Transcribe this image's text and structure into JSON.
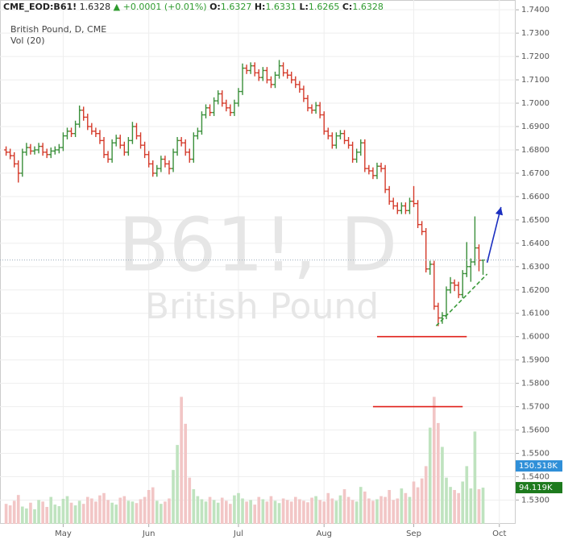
{
  "chart_data": {
    "type": "ohlc",
    "header": {
      "symbol": "CME_EOD:B61!",
      "last": 1.6328,
      "change": "+0.0001",
      "change_pct": "(+0.01%)",
      "o_label": "O:",
      "open": 1.6327,
      "h_label": "H:",
      "high": 1.6331,
      "l_label": "L:",
      "low": 1.6265,
      "c_label": "C:",
      "close": 1.6328
    },
    "legend_title": "British Pound, D, CME",
    "volume_title": "Vol (20)",
    "watermark": "B61!, D",
    "watermark_sub": "British Pound",
    "up_color": "#3a8f3a",
    "down_color": "#d43a2a",
    "up_volume_color": "#bfe3bf",
    "down_volume_color": "#f2c6c6",
    "xlim": [
      -1.5,
      125
    ],
    "xticks": [
      {
        "value": 14,
        "label": "May"
      },
      {
        "value": 35,
        "label": "Jun"
      },
      {
        "value": 57,
        "label": "Jul"
      },
      {
        "value": 78,
        "label": "Aug"
      },
      {
        "value": 100,
        "label": "Sep"
      },
      {
        "value": 121,
        "label": "Oct"
      }
    ],
    "ylim": [
      1.5198,
      1.7442
    ],
    "yticks": [
      {
        "value": 1.74,
        "label": "1.7400"
      },
      {
        "value": 1.73,
        "label": "1.7300"
      },
      {
        "value": 1.72,
        "label": "1.7200"
      },
      {
        "value": 1.71,
        "label": "1.7100"
      },
      {
        "value": 1.7,
        "label": "1.7000"
      },
      {
        "value": 1.69,
        "label": "1.6900"
      },
      {
        "value": 1.68,
        "label": "1.6800"
      },
      {
        "value": 1.67,
        "label": "1.6700"
      },
      {
        "value": 1.66,
        "label": "1.6600"
      },
      {
        "value": 1.65,
        "label": "1.6500"
      },
      {
        "value": 1.64,
        "label": "1.6400"
      },
      {
        "value": 1.63,
        "label": "1.6300"
      },
      {
        "value": 1.62,
        "label": "1.6200"
      },
      {
        "value": 1.61,
        "label": "1.6100"
      },
      {
        "value": 1.6,
        "label": "1.6000"
      },
      {
        "value": 1.59,
        "label": "1.5900"
      },
      {
        "value": 1.58,
        "label": "1.5800"
      },
      {
        "value": 1.57,
        "label": "1.5700"
      },
      {
        "value": 1.56,
        "label": "1.5600"
      },
      {
        "value": 1.55,
        "label": "1.5500"
      },
      {
        "value": 1.54,
        "label": "1.5400"
      },
      {
        "value": 1.53,
        "label": "1.5300"
      }
    ],
    "grid": true,
    "volume_ylim": [
      0,
      400
    ],
    "volume_ma": {
      "value": 150.518,
      "label": "150.518K"
    },
    "volume_last": {
      "value": 94.119,
      "label": "94.119K"
    },
    "bars": [
      [
        1.68,
        1.6815,
        1.6775,
        1.679
      ],
      [
        1.679,
        1.6805,
        1.676,
        1.6775
      ],
      [
        1.6775,
        1.679,
        1.6725,
        1.674
      ],
      [
        1.674,
        1.6755,
        1.666,
        1.67
      ],
      [
        1.67,
        1.6805,
        1.6685,
        1.679
      ],
      [
        1.679,
        1.683,
        1.6775,
        1.681
      ],
      [
        1.681,
        1.6825,
        1.678,
        1.6795
      ],
      [
        1.6795,
        1.6815,
        1.678,
        1.68
      ],
      [
        1.68,
        1.683,
        1.6785,
        1.6815
      ],
      [
        1.6815,
        1.683,
        1.6775,
        1.679
      ],
      [
        1.679,
        1.6805,
        1.6765,
        1.678
      ],
      [
        1.678,
        1.681,
        1.6765,
        1.6795
      ],
      [
        1.6795,
        1.6815,
        1.678,
        1.68
      ],
      [
        1.68,
        1.6825,
        1.6785,
        1.681
      ],
      [
        1.681,
        1.6875,
        1.6795,
        1.686
      ],
      [
        1.686,
        1.6895,
        1.6845,
        1.688
      ],
      [
        1.688,
        1.6895,
        1.6855,
        1.687
      ],
      [
        1.687,
        1.6925,
        1.6855,
        1.691
      ],
      [
        1.691,
        1.699,
        1.6895,
        1.697
      ],
      [
        1.697,
        1.6985,
        1.6925,
        1.694
      ],
      [
        1.694,
        1.6955,
        1.6885,
        1.69
      ],
      [
        1.69,
        1.6915,
        1.6865,
        1.688
      ],
      [
        1.688,
        1.6895,
        1.6855,
        1.687
      ],
      [
        1.687,
        1.6885,
        1.6825,
        1.684
      ],
      [
        1.684,
        1.6855,
        1.6765,
        1.678
      ],
      [
        1.678,
        1.6795,
        1.6745,
        1.676
      ],
      [
        1.676,
        1.6845,
        1.6745,
        1.683
      ],
      [
        1.683,
        1.6865,
        1.6815,
        1.685
      ],
      [
        1.685,
        1.6865,
        1.6805,
        1.682
      ],
      [
        1.682,
        1.6835,
        1.6775,
        1.679
      ],
      [
        1.679,
        1.6855,
        1.6775,
        1.684
      ],
      [
        1.684,
        1.692,
        1.6825,
        1.69
      ],
      [
        1.69,
        1.6915,
        1.6845,
        1.686
      ],
      [
        1.686,
        1.6875,
        1.6805,
        1.682
      ],
      [
        1.682,
        1.6835,
        1.6765,
        1.678
      ],
      [
        1.678,
        1.6795,
        1.6725,
        1.674
      ],
      [
        1.674,
        1.6755,
        1.6685,
        1.67
      ],
      [
        1.67,
        1.6735,
        1.6685,
        1.672
      ],
      [
        1.672,
        1.6775,
        1.6705,
        1.676
      ],
      [
        1.676,
        1.6775,
        1.6725,
        1.674
      ],
      [
        1.674,
        1.6755,
        1.6695,
        1.672
      ],
      [
        1.672,
        1.6805,
        1.6705,
        1.679
      ],
      [
        1.679,
        1.6855,
        1.6775,
        1.684
      ],
      [
        1.684,
        1.6855,
        1.6815,
        1.683
      ],
      [
        1.683,
        1.6845,
        1.6775,
        1.679
      ],
      [
        1.679,
        1.6805,
        1.6745,
        1.676
      ],
      [
        1.676,
        1.6875,
        1.6745,
        1.686
      ],
      [
        1.686,
        1.6895,
        1.6845,
        1.688
      ],
      [
        1.688,
        1.6965,
        1.6865,
        1.695
      ],
      [
        1.695,
        1.6995,
        1.6935,
        1.698
      ],
      [
        1.698,
        1.6995,
        1.6945,
        1.696
      ],
      [
        1.696,
        1.7025,
        1.6945,
        1.701
      ],
      [
        1.701,
        1.7055,
        1.6995,
        1.704
      ],
      [
        1.704,
        1.7055,
        1.6985,
        1.7
      ],
      [
        1.7,
        1.7015,
        1.6965,
        1.698
      ],
      [
        1.698,
        1.6995,
        1.6945,
        1.696
      ],
      [
        1.696,
        1.7015,
        1.6945,
        1.7
      ],
      [
        1.7,
        1.7065,
        1.6985,
        1.705
      ],
      [
        1.705,
        1.717,
        1.7035,
        1.715
      ],
      [
        1.715,
        1.7165,
        1.7125,
        1.714
      ],
      [
        1.714,
        1.7175,
        1.7125,
        1.716
      ],
      [
        1.716,
        1.7175,
        1.7115,
        1.713
      ],
      [
        1.713,
        1.7145,
        1.7095,
        1.711
      ],
      [
        1.711,
        1.7155,
        1.7095,
        1.714
      ],
      [
        1.714,
        1.7155,
        1.7085,
        1.71
      ],
      [
        1.71,
        1.7115,
        1.7065,
        1.708
      ],
      [
        1.708,
        1.7135,
        1.7065,
        1.712
      ],
      [
        1.712,
        1.7185,
        1.7105,
        1.716
      ],
      [
        1.716,
        1.7175,
        1.7115,
        1.713
      ],
      [
        1.713,
        1.7145,
        1.7105,
        1.712
      ],
      [
        1.712,
        1.7135,
        1.7085,
        1.71
      ],
      [
        1.71,
        1.7115,
        1.7065,
        1.708
      ],
      [
        1.708,
        1.7095,
        1.7045,
        1.706
      ],
      [
        1.706,
        1.7075,
        1.7005,
        1.702
      ],
      [
        1.702,
        1.7035,
        1.6965,
        1.698
      ],
      [
        1.698,
        1.6995,
        1.6955,
        1.697
      ],
      [
        1.697,
        1.7005,
        1.6955,
        1.699
      ],
      [
        1.699,
        1.7005,
        1.6935,
        1.695
      ],
      [
        1.695,
        1.6965,
        1.6865,
        1.688
      ],
      [
        1.688,
        1.6895,
        1.6845,
        1.686
      ],
      [
        1.686,
        1.6875,
        1.6805,
        1.682
      ],
      [
        1.682,
        1.6875,
        1.6805,
        1.686
      ],
      [
        1.686,
        1.6885,
        1.6845,
        1.687
      ],
      [
        1.687,
        1.6885,
        1.6825,
        1.684
      ],
      [
        1.684,
        1.6855,
        1.6805,
        1.682
      ],
      [
        1.682,
        1.6835,
        1.6745,
        1.676
      ],
      [
        1.676,
        1.6805,
        1.6745,
        1.679
      ],
      [
        1.679,
        1.6845,
        1.6775,
        1.683
      ],
      [
        1.683,
        1.6845,
        1.6705,
        1.672
      ],
      [
        1.672,
        1.6735,
        1.6695,
        1.671
      ],
      [
        1.671,
        1.6725,
        1.6675,
        1.669
      ],
      [
        1.669,
        1.6745,
        1.6675,
        1.673
      ],
      [
        1.673,
        1.6745,
        1.6705,
        1.672
      ],
      [
        1.672,
        1.6735,
        1.6615,
        1.663
      ],
      [
        1.663,
        1.6645,
        1.6565,
        1.658
      ],
      [
        1.658,
        1.6595,
        1.6545,
        1.656
      ],
      [
        1.656,
        1.6575,
        1.6525,
        1.654
      ],
      [
        1.654,
        1.6575,
        1.6525,
        1.656
      ],
      [
        1.656,
        1.6575,
        1.6525,
        1.654
      ],
      [
        1.654,
        1.6595,
        1.6525,
        1.658
      ],
      [
        1.658,
        1.6645,
        1.6555,
        1.657
      ],
      [
        1.657,
        1.6585,
        1.6465,
        1.648
      ],
      [
        1.648,
        1.6495,
        1.6435,
        1.645
      ],
      [
        1.645,
        1.6465,
        1.6275,
        1.629
      ],
      [
        1.629,
        1.6325,
        1.6265,
        1.631
      ],
      [
        1.631,
        1.6325,
        1.6115,
        1.613
      ],
      [
        1.613,
        1.6145,
        1.6045,
        1.608
      ],
      [
        1.608,
        1.6105,
        1.6055,
        1.609
      ],
      [
        1.609,
        1.6215,
        1.6075,
        1.62
      ],
      [
        1.62,
        1.6255,
        1.6185,
        1.623
      ],
      [
        1.623,
        1.6245,
        1.6195,
        1.622
      ],
      [
        1.622,
        1.6235,
        1.6165,
        1.618
      ],
      [
        1.618,
        1.6285,
        1.6165,
        1.627
      ],
      [
        1.627,
        1.6405,
        1.6255,
        1.63
      ],
      [
        1.63,
        1.6335,
        1.6235,
        1.632
      ],
      [
        1.632,
        1.6515,
        1.6305,
        1.638
      ],
      [
        1.638,
        1.6395,
        1.628,
        1.6327
      ],
      [
        1.6327,
        1.6331,
        1.6265,
        1.6328
      ]
    ],
    "volume": [
      52,
      48,
      60,
      75,
      45,
      40,
      55,
      38,
      62,
      58,
      44,
      70,
      50,
      46,
      65,
      72,
      55,
      48,
      60,
      52,
      70,
      66,
      58,
      74,
      80,
      62,
      55,
      50,
      68,
      72,
      60,
      58,
      54,
      64,
      70,
      88,
      95,
      60,
      52,
      58,
      66,
      140,
      205,
      330,
      260,
      120,
      90,
      72,
      64,
      58,
      70,
      62,
      55,
      68,
      60,
      52,
      74,
      80,
      66,
      58,
      62,
      50,
      70,
      64,
      58,
      72,
      60,
      54,
      66,
      62,
      58,
      70,
      64,
      60,
      56,
      68,
      72,
      62,
      58,
      80,
      66,
      60,
      74,
      90,
      70,
      62,
      58,
      96,
      84,
      66,
      60,
      64,
      72,
      70,
      88,
      62,
      66,
      92,
      80,
      70,
      110,
      95,
      118,
      150,
      250,
      330,
      262,
      200,
      120,
      96,
      88,
      80,
      110,
      150,
      92,
      240,
      90,
      94.119
    ],
    "drawings": [
      {
        "kind": "line",
        "color": "#e0201a",
        "x": [
          91,
          113
        ],
        "y": [
          1.6,
          1.6
        ]
      },
      {
        "kind": "line",
        "color": "#e0201a",
        "x": [
          90,
          112
        ],
        "y": [
          1.57,
          1.57
        ]
      },
      {
        "kind": "dashed",
        "color": "#3a9a3a",
        "x": [
          105.5,
          118
        ],
        "y": [
          1.6046,
          1.6268
        ]
      },
      {
        "kind": "arrow",
        "color": "#1b2fc0",
        "x": [
          118,
          121.4
        ],
        "y": [
          1.6317,
          1.6555
        ]
      }
    ]
  }
}
